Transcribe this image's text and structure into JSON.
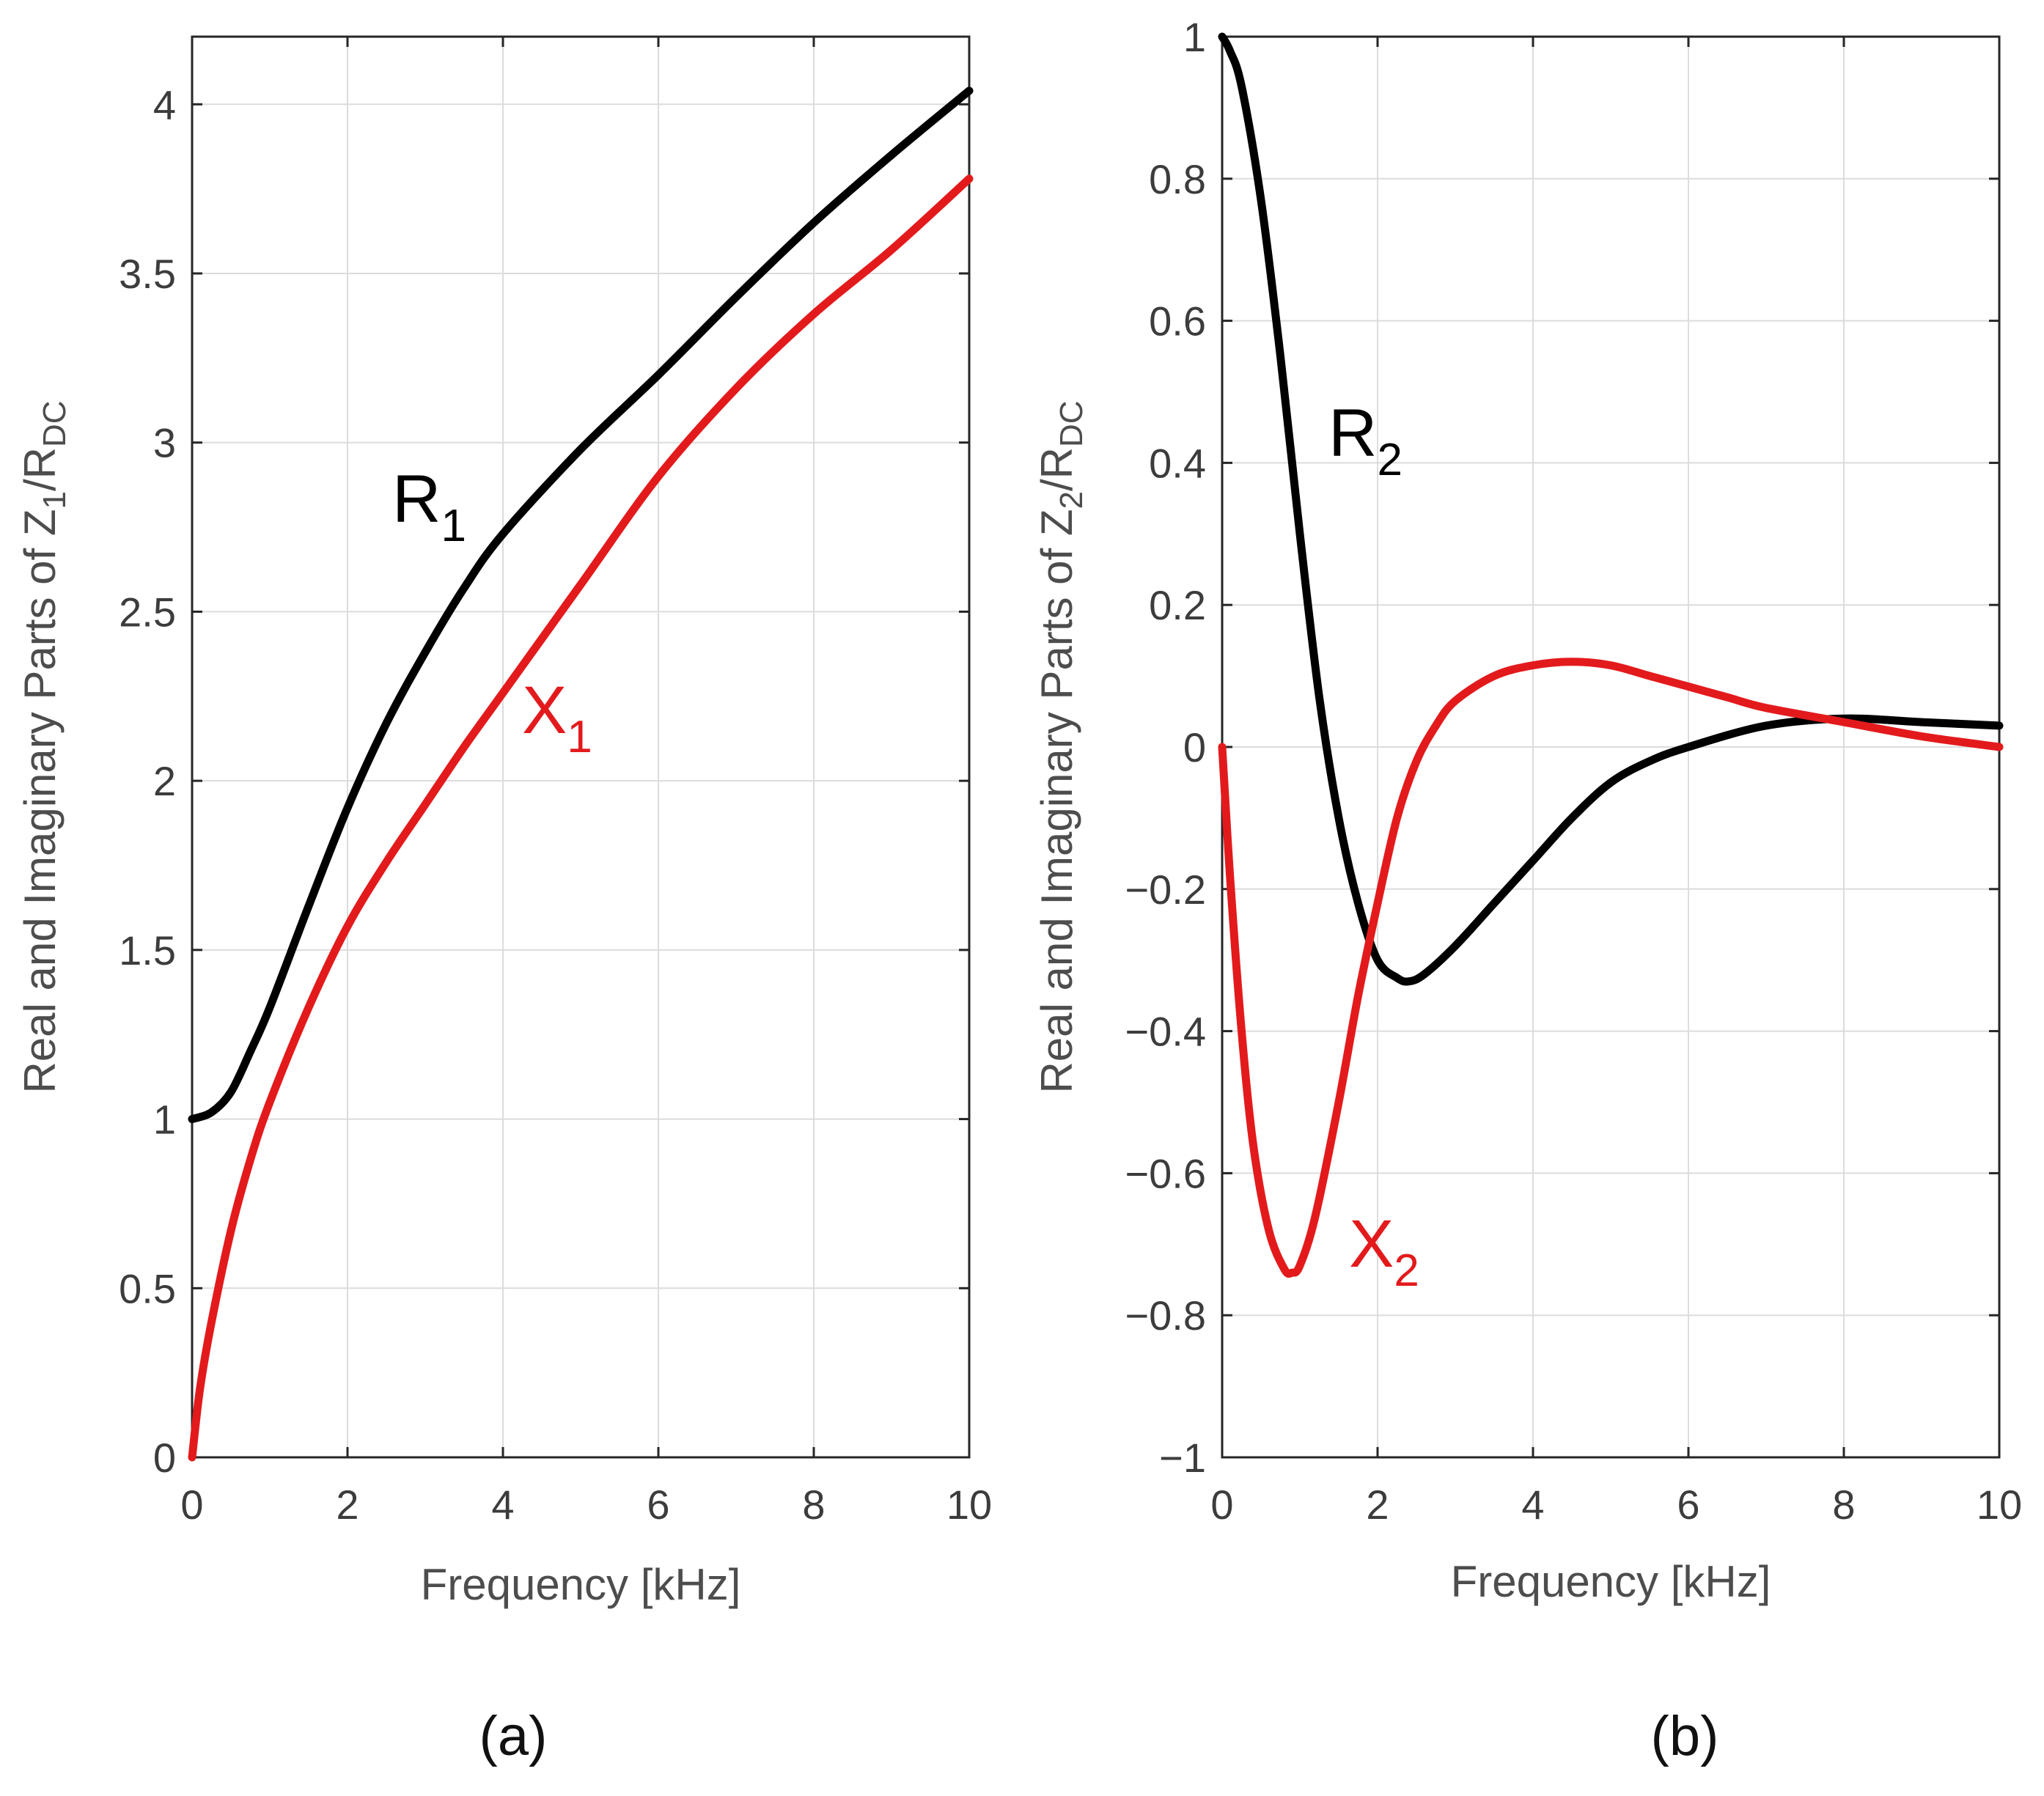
{
  "chart_data": [
    {
      "panel": "(a)",
      "type": "line",
      "xlabel": "Frequency [kHz]",
      "ylabel": {
        "main": "Real and Imaginary Parts of Z",
        "sub1": "1",
        "mid": "/R",
        "sub2": "DC"
      },
      "xlim": [
        0,
        10
      ],
      "ylim": [
        0,
        4.2
      ],
      "xticks": [
        0,
        2,
        4,
        6,
        8,
        10
      ],
      "yticks": [
        0,
        0.5,
        1,
        1.5,
        2,
        2.5,
        3,
        3.5,
        4
      ],
      "grid": true,
      "series": [
        {
          "name": "R1",
          "label_main": "R",
          "label_sub": "1",
          "color": "#000000",
          "x": [
            0,
            0.25,
            0.5,
            0.75,
            1,
            1.5,
            2,
            2.5,
            3,
            3.5,
            4,
            5,
            6,
            7,
            8,
            9,
            10
          ],
          "y": [
            1.0,
            1.02,
            1.08,
            1.2,
            1.33,
            1.63,
            1.92,
            2.17,
            2.38,
            2.57,
            2.73,
            2.98,
            3.2,
            3.43,
            3.65,
            3.85,
            4.04
          ]
        },
        {
          "name": "X1",
          "label_main": "X",
          "label_sub": "1",
          "color": "#e31a1c",
          "x": [
            0,
            0.1,
            0.25,
            0.5,
            0.75,
            1,
            1.5,
            2,
            2.5,
            3,
            3.5,
            4,
            5,
            6,
            7,
            8,
            9,
            10
          ],
          "y": [
            0.0,
            0.2,
            0.4,
            0.67,
            0.88,
            1.05,
            1.33,
            1.57,
            1.76,
            1.93,
            2.1,
            2.26,
            2.58,
            2.9,
            3.16,
            3.38,
            3.57,
            3.78
          ]
        }
      ]
    },
    {
      "panel": "(b)",
      "type": "line",
      "xlabel": "Frequency [kHz]",
      "ylabel": {
        "main": "Real and Imaginary Parts of Z",
        "sub1": "2",
        "mid": "/R",
        "sub2": "DC"
      },
      "xlim": [
        0,
        10
      ],
      "ylim": [
        -1,
        1
      ],
      "xticks": [
        0,
        2,
        4,
        6,
        8,
        10
      ],
      "yticks": [
        -1,
        -0.8,
        -0.6,
        -0.4,
        -0.2,
        0,
        0.2,
        0.4,
        0.6,
        0.8,
        1
      ],
      "ytick_labels": [
        "−1",
        "−0.8",
        "−0.6",
        "−0.4",
        "−0.2",
        "0",
        "0.2",
        "0.4",
        "0.6",
        "0.8",
        "1"
      ],
      "grid": true,
      "series": [
        {
          "name": "R2",
          "label_main": "R",
          "label_sub": "2",
          "color": "#000000",
          "x": [
            0,
            0.1,
            0.25,
            0.5,
            0.75,
            1,
            1.25,
            1.5,
            1.75,
            2,
            2.25,
            2.4,
            2.6,
            3,
            3.5,
            4,
            4.5,
            5,
            5.5,
            6,
            7,
            8,
            9,
            10
          ],
          "y": [
            1.0,
            0.98,
            0.93,
            0.77,
            0.55,
            0.3,
            0.07,
            -0.1,
            -0.22,
            -0.3,
            -0.325,
            -0.33,
            -0.32,
            -0.28,
            -0.22,
            -0.16,
            -0.1,
            -0.05,
            -0.02,
            0.0,
            0.03,
            0.04,
            0.035,
            0.03
          ]
        },
        {
          "name": "X2",
          "label_main": "X",
          "label_sub": "2",
          "color": "#e31a1c",
          "x": [
            0,
            0.1,
            0.25,
            0.4,
            0.6,
            0.8,
            0.9,
            1.0,
            1.2,
            1.5,
            1.75,
            2,
            2.25,
            2.5,
            2.75,
            3,
            3.5,
            4,
            4.5,
            5,
            5.5,
            6,
            6.5,
            7,
            8,
            9,
            10
          ],
          "y": [
            0.0,
            -0.18,
            -0.4,
            -0.56,
            -0.68,
            -0.735,
            -0.74,
            -0.73,
            -0.66,
            -0.5,
            -0.35,
            -0.22,
            -0.1,
            -0.02,
            0.03,
            0.065,
            0.1,
            0.115,
            0.12,
            0.115,
            0.1,
            0.085,
            0.07,
            0.055,
            0.035,
            0.015,
            0.0
          ]
        }
      ]
    }
  ]
}
